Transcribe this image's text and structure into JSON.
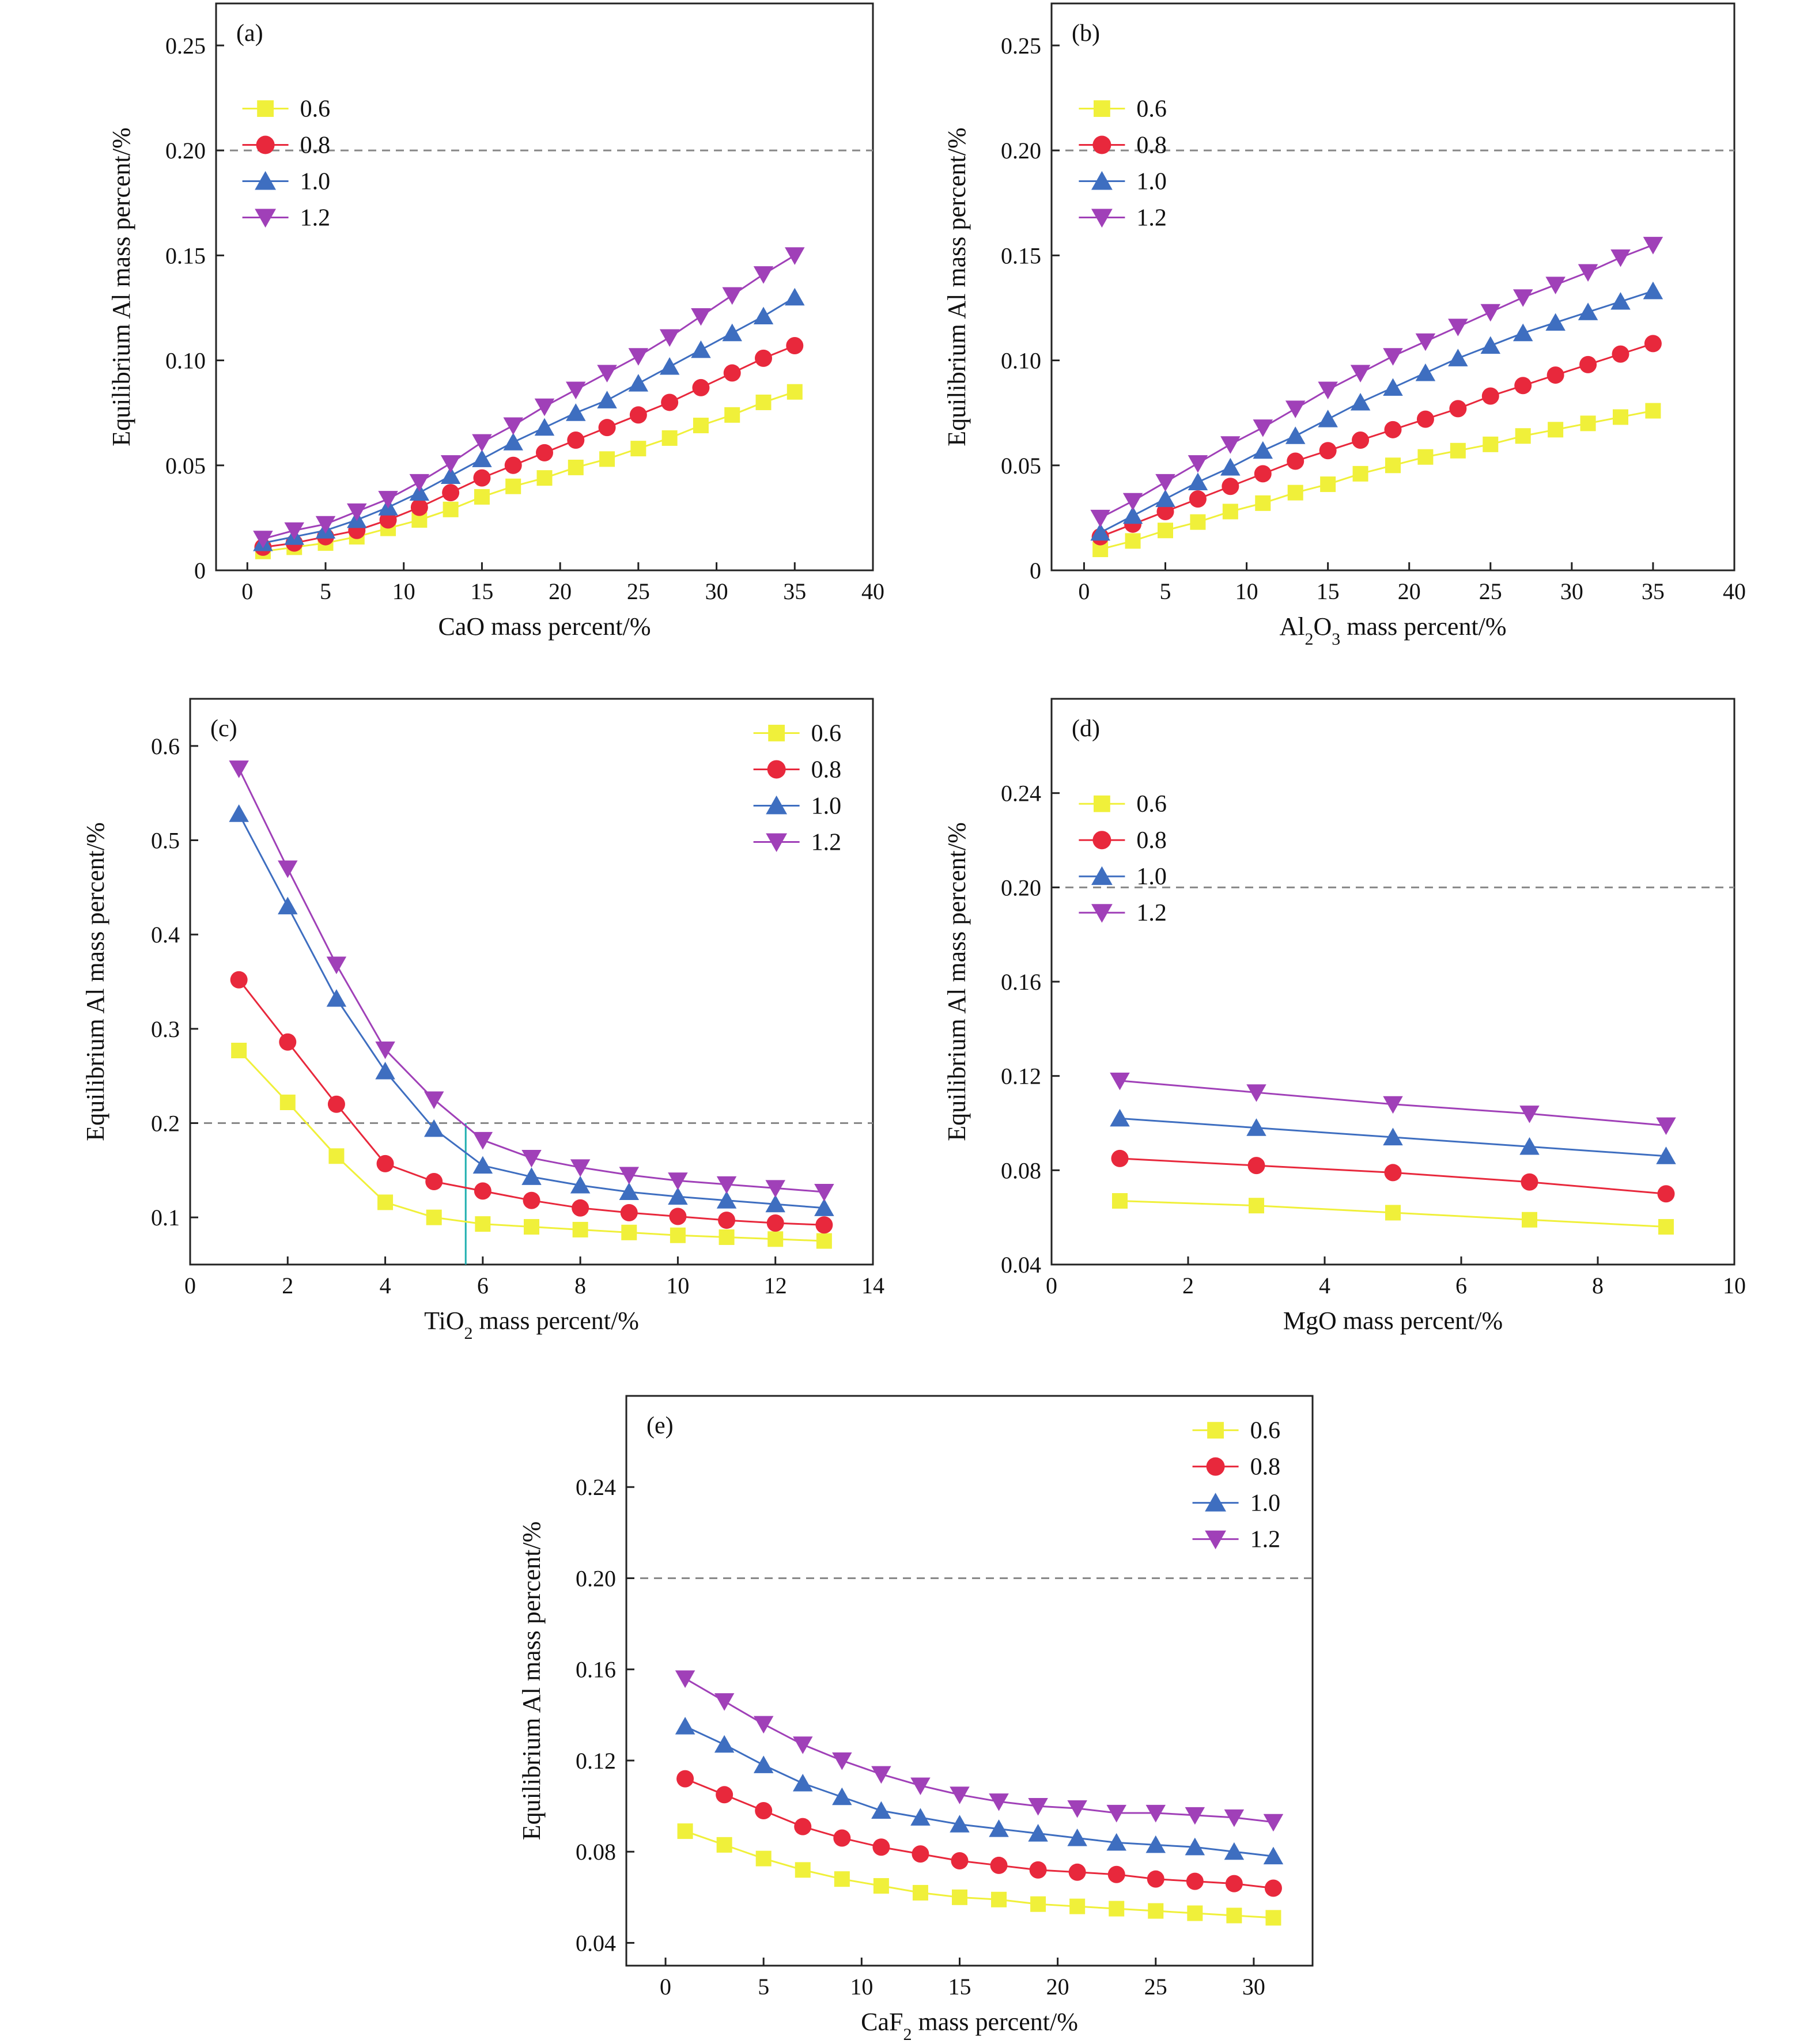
{
  "colors": {
    "0.6": "#f0f03a",
    "0.8": "#e8283c",
    "1.0": "#3e6ec0",
    "1.2": "#a040b8",
    "reference_line": "#888888",
    "marker_line_c": "#20b0b0"
  },
  "markers": {
    "0.6": "square",
    "0.8": "circle",
    "1.0": "triangle-up",
    "1.2": "triangle-down"
  },
  "chart_data": [
    {
      "type": "line",
      "panel_label": "(a)",
      "xlabel": "CaO mass percent/%",
      "ylabel": "Equilibrium Al mass percent/%",
      "xlim": [
        -2,
        40
      ],
      "ylim": [
        0,
        0.27
      ],
      "xticks": [
        "0",
        "5",
        "10",
        "15",
        "20",
        "25",
        "30",
        "35",
        "40"
      ],
      "yticks": [
        "0",
        "0.05",
        "0.10",
        "0.15",
        "0.20",
        "0.25"
      ],
      "reference_line": 0.2,
      "legend": "upper-left",
      "x": [
        1,
        3,
        5,
        7,
        9,
        11,
        13,
        15,
        17,
        19,
        21,
        23,
        25,
        27,
        29,
        31,
        33,
        35
      ],
      "series": [
        {
          "name": "0.6",
          "values": [
            0.009,
            0.011,
            0.013,
            0.016,
            0.02,
            0.024,
            0.029,
            0.035,
            0.04,
            0.044,
            0.049,
            0.053,
            0.058,
            0.063,
            0.069,
            0.074,
            0.08,
            0.085
          ]
        },
        {
          "name": "0.8",
          "values": [
            0.011,
            0.013,
            0.016,
            0.019,
            0.024,
            0.03,
            0.037,
            0.044,
            0.05,
            0.056,
            0.062,
            0.068,
            0.074,
            0.08,
            0.087,
            0.094,
            0.101,
            0.107
          ]
        },
        {
          "name": "1.0",
          "values": [
            0.013,
            0.016,
            0.019,
            0.024,
            0.03,
            0.037,
            0.045,
            0.053,
            0.061,
            0.068,
            0.075,
            0.081,
            0.089,
            0.097,
            0.105,
            0.113,
            0.121,
            0.13
          ]
        },
        {
          "name": "1.2",
          "values": [
            0.015,
            0.019,
            0.022,
            0.028,
            0.034,
            0.042,
            0.051,
            0.061,
            0.069,
            0.078,
            0.086,
            0.094,
            0.102,
            0.111,
            0.121,
            0.131,
            0.141,
            0.15
          ]
        }
      ]
    },
    {
      "type": "line",
      "panel_label": "(b)",
      "xlabel": "Al2O3 mass percent/%",
      "xlabel_parts": [
        "Al",
        "2",
        "O",
        "3",
        " mass percent/%"
      ],
      "ylabel": "Equilibrium Al mass percent/%",
      "xlim": [
        -2,
        40
      ],
      "ylim": [
        0,
        0.27
      ],
      "xticks": [
        "0",
        "5",
        "10",
        "15",
        "20",
        "25",
        "30",
        "35",
        "40"
      ],
      "yticks": [
        "0",
        "0.05",
        "0.10",
        "0.15",
        "0.20",
        "0.25"
      ],
      "reference_line": 0.2,
      "legend": "upper-left",
      "x": [
        1,
        3,
        5,
        7,
        9,
        11,
        13,
        15,
        17,
        19,
        21,
        23,
        25,
        27,
        29,
        31,
        33,
        35
      ],
      "series": [
        {
          "name": "0.6",
          "values": [
            0.01,
            0.014,
            0.019,
            0.023,
            0.028,
            0.032,
            0.037,
            0.041,
            0.046,
            0.05,
            0.054,
            0.057,
            0.06,
            0.064,
            0.067,
            0.07,
            0.073,
            0.076
          ]
        },
        {
          "name": "0.8",
          "values": [
            0.016,
            0.022,
            0.028,
            0.034,
            0.04,
            0.046,
            0.052,
            0.057,
            0.062,
            0.067,
            0.072,
            0.077,
            0.083,
            0.088,
            0.093,
            0.098,
            0.103,
            0.108
          ]
        },
        {
          "name": "1.0",
          "values": [
            0.018,
            0.026,
            0.034,
            0.042,
            0.049,
            0.057,
            0.064,
            0.072,
            0.08,
            0.087,
            0.094,
            0.101,
            0.107,
            0.113,
            0.118,
            0.123,
            0.128,
            0.133
          ]
        },
        {
          "name": "1.2",
          "values": [
            0.025,
            0.033,
            0.042,
            0.051,
            0.06,
            0.068,
            0.077,
            0.086,
            0.094,
            0.102,
            0.109,
            0.116,
            0.123,
            0.13,
            0.136,
            0.142,
            0.149,
            0.155
          ]
        }
      ]
    },
    {
      "type": "line",
      "panel_label": "(c)",
      "xlabel": "TiO2 mass percent/%",
      "xlabel_parts": [
        "TiO",
        "2",
        " mass percent/%"
      ],
      "ylabel": "Equilibrium Al mass percent/%",
      "xlim": [
        0,
        14
      ],
      "ylim": [
        0.05,
        0.65
      ],
      "xticks": [
        "0",
        "2",
        "4",
        "6",
        "8",
        "10",
        "12",
        "14"
      ],
      "yticks": [
        "0.1",
        "0.2",
        "0.3",
        "0.4",
        "0.5",
        "0.6"
      ],
      "reference_line": 0.2,
      "vertical_marker": {
        "x": 5.65,
        "y": 0.2
      },
      "legend": "upper-right",
      "x": [
        1,
        2,
        3,
        4,
        5,
        6,
        7,
        8,
        9,
        10,
        11,
        12,
        13
      ],
      "series": [
        {
          "name": "0.6",
          "values": [
            0.277,
            0.222,
            0.165,
            0.116,
            0.1,
            0.093,
            0.09,
            0.087,
            0.084,
            0.081,
            0.079,
            0.077,
            0.075
          ]
        },
        {
          "name": "0.8",
          "values": [
            0.352,
            0.286,
            0.22,
            0.157,
            0.138,
            0.128,
            0.118,
            0.11,
            0.105,
            0.101,
            0.097,
            0.094,
            0.092
          ]
        },
        {
          "name": "1.0",
          "values": [
            0.528,
            0.43,
            0.332,
            0.255,
            0.194,
            0.155,
            0.143,
            0.134,
            0.127,
            0.122,
            0.118,
            0.114,
            0.11
          ]
        },
        {
          "name": "1.2",
          "values": [
            0.576,
            0.47,
            0.368,
            0.278,
            0.225,
            0.182,
            0.163,
            0.153,
            0.145,
            0.139,
            0.135,
            0.131,
            0.127
          ]
        }
      ]
    },
    {
      "type": "line",
      "panel_label": "(d)",
      "xlabel": "MgO mass percent/%",
      "ylabel": "Equilibrium Al mass percent/%",
      "xlim": [
        0,
        10
      ],
      "ylim": [
        0.04,
        0.28
      ],
      "xticks": [
        "0",
        "2",
        "4",
        "6",
        "8",
        "10"
      ],
      "yticks": [
        "0.04",
        "0.08",
        "0.12",
        "0.16",
        "0.20",
        "0.24"
      ],
      "reference_line": 0.2,
      "legend": "upper-left",
      "x": [
        1,
        3,
        5,
        7,
        9
      ],
      "series": [
        {
          "name": "0.6",
          "values": [
            0.067,
            0.065,
            0.062,
            0.059,
            0.056
          ]
        },
        {
          "name": "0.8",
          "values": [
            0.085,
            0.082,
            0.079,
            0.075,
            0.07
          ]
        },
        {
          "name": "1.0",
          "values": [
            0.102,
            0.098,
            0.094,
            0.09,
            0.086
          ]
        },
        {
          "name": "1.2",
          "values": [
            0.118,
            0.113,
            0.108,
            0.104,
            0.099
          ]
        }
      ]
    },
    {
      "type": "line",
      "panel_label": "(e)",
      "xlabel": "CaF2 mass percent/%",
      "xlabel_parts": [
        "CaF",
        "2",
        " mass percent/%"
      ],
      "ylabel": "Equilibrium Al mass percent/%",
      "xlim": [
        -2,
        33
      ],
      "ylim": [
        0.03,
        0.28
      ],
      "xticks": [
        "0",
        "5",
        "10",
        "15",
        "20",
        "25",
        "30"
      ],
      "yticks": [
        "0.04",
        "0.08",
        "0.12",
        "0.16",
        "0.20",
        "0.24"
      ],
      "reference_line": 0.2,
      "legend": "upper-right",
      "x": [
        1,
        3,
        5,
        7,
        9,
        11,
        13,
        15,
        17,
        19,
        21,
        23,
        25,
        27,
        29,
        31
      ],
      "series": [
        {
          "name": "0.6",
          "values": [
            0.089,
            0.083,
            0.077,
            0.072,
            0.068,
            0.065,
            0.062,
            0.06,
            0.059,
            0.057,
            0.056,
            0.055,
            0.054,
            0.053,
            0.052,
            0.051
          ]
        },
        {
          "name": "0.8",
          "values": [
            0.112,
            0.105,
            0.098,
            0.091,
            0.086,
            0.082,
            0.079,
            0.076,
            0.074,
            0.072,
            0.071,
            0.07,
            0.068,
            0.067,
            0.066,
            0.064
          ]
        },
        {
          "name": "1.0",
          "values": [
            0.135,
            0.127,
            0.118,
            0.11,
            0.104,
            0.098,
            0.095,
            0.092,
            0.09,
            0.088,
            0.086,
            0.084,
            0.083,
            0.082,
            0.08,
            0.078
          ]
        },
        {
          "name": "1.2",
          "values": [
            0.156,
            0.146,
            0.136,
            0.127,
            0.12,
            0.114,
            0.109,
            0.105,
            0.102,
            0.1,
            0.099,
            0.097,
            0.097,
            0.096,
            0.095,
            0.093
          ]
        }
      ]
    }
  ]
}
